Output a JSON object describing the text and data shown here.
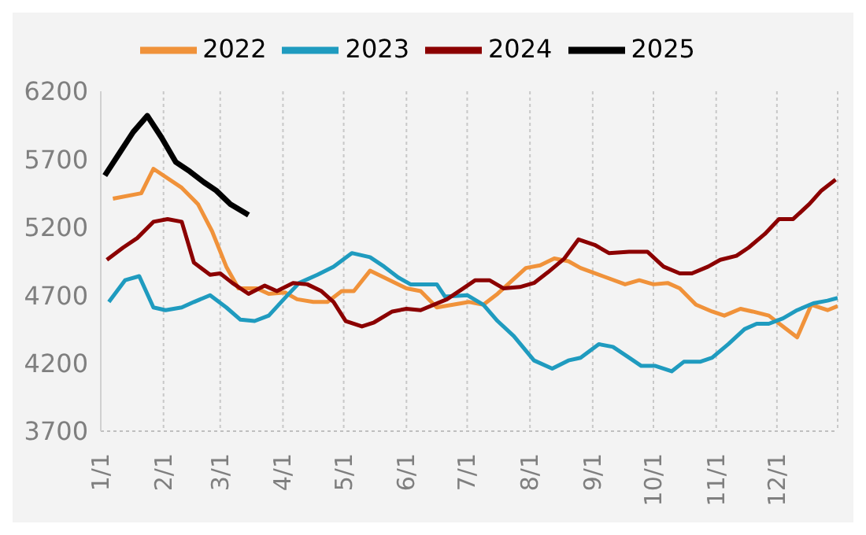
{
  "chart_data": {
    "type": "line",
    "xlim": [
      "--01-01",
      "--12-31"
    ],
    "xticks": [
      {
        "value": "--01-01",
        "label": "1/1"
      },
      {
        "value": "--02-01",
        "label": "2/1"
      },
      {
        "value": "--03-01",
        "label": "3/1"
      },
      {
        "value": "--04-01",
        "label": "4/1"
      },
      {
        "value": "--05-01",
        "label": "5/1"
      },
      {
        "value": "--06-01",
        "label": "6/1"
      },
      {
        "value": "--07-01",
        "label": "7/1"
      },
      {
        "value": "--08-01",
        "label": "8/1"
      },
      {
        "value": "--09-01",
        "label": "9/1"
      },
      {
        "value": "--10-01",
        "label": "10/1"
      },
      {
        "value": "--11-01",
        "label": "11/1"
      },
      {
        "value": "--12-01",
        "label": "12/1"
      }
    ],
    "ylim": [
      3700,
      6200
    ],
    "yticks": [
      3700,
      4200,
      4700,
      5200,
      5700,
      6200
    ],
    "grid": "x",
    "legend": "top",
    "line_style": "solid",
    "marker": "none",
    "series": [
      {
        "name": "2022",
        "color": "#f0923a",
        "x": [
          "--01-07",
          "--01-21",
          "--01-27",
          "--02-10",
          "--02-18",
          "--02-25",
          "--03-04",
          "--03-10",
          "--03-19",
          "--03-25",
          "--04-02",
          "--04-08",
          "--04-16",
          "--04-23",
          "--04-30",
          "--05-06",
          "--05-14",
          "--05-21",
          "--06-01",
          "--06-08",
          "--06-16",
          "--07-02",
          "--07-09",
          "--07-16",
          "--07-30",
          "--08-06",
          "--08-13",
          "--08-20",
          "--08-26",
          "--09-06",
          "--09-17",
          "--09-24",
          "--10-01",
          "--10-08",
          "--10-14",
          "--10-22",
          "--10-30",
          "--11-05",
          "--11-13",
          "--11-19",
          "--11-27",
          "--12-04",
          "--12-11",
          "--12-18",
          "--12-26",
          "--12-31"
        ],
        "values": [
          5410,
          5450,
          5630,
          5490,
          5370,
          5170,
          4910,
          4750,
          4750,
          4710,
          4720,
          4670,
          4650,
          4650,
          4730,
          4730,
          4880,
          4830,
          4750,
          4730,
          4610,
          4650,
          4630,
          4710,
          4900,
          4920,
          4970,
          4950,
          4900,
          4840,
          4780,
          4810,
          4780,
          4790,
          4750,
          4630,
          4580,
          4550,
          4600,
          4580,
          4550,
          4470,
          4390,
          4630,
          4590,
          4620
        ]
      },
      {
        "name": "2023",
        "color": "#1f9bbf",
        "x": [
          "--01-05",
          "--01-13",
          "--01-20",
          "--01-27",
          "--02-02",
          "--02-10",
          "--02-16",
          "--02-24",
          "--03-04",
          "--03-11",
          "--03-18",
          "--03-25",
          "--04-02",
          "--04-09",
          "--04-18",
          "--04-26",
          "--05-05",
          "--05-14",
          "--05-21",
          "--05-28",
          "--06-03",
          "--06-16",
          "--06-20",
          "--07-01",
          "--07-09",
          "--07-16",
          "--07-24",
          "--08-03",
          "--08-12",
          "--08-20",
          "--08-26",
          "--09-04",
          "--09-11",
          "--09-19",
          "--09-25",
          "--10-02",
          "--10-10",
          "--10-16",
          "--10-24",
          "--10-30",
          "--11-07",
          "--11-15",
          "--11-21",
          "--11-27",
          "--12-04",
          "--12-11",
          "--12-19",
          "--12-26",
          "--12-31"
        ],
        "values": [
          4650,
          4810,
          4840,
          4610,
          4590,
          4610,
          4650,
          4700,
          4610,
          4520,
          4510,
          4550,
          4680,
          4790,
          4850,
          4910,
          5010,
          4980,
          4910,
          4830,
          4780,
          4780,
          4690,
          4700,
          4630,
          4510,
          4400,
          4220,
          4160,
          4220,
          4240,
          4340,
          4320,
          4240,
          4180,
          4180,
          4140,
          4210,
          4210,
          4240,
          4340,
          4450,
          4490,
          4490,
          4530,
          4590,
          4640,
          4660,
          4680
        ]
      },
      {
        "name": "2024",
        "color": "#8b0000",
        "x": [
          "--01-04",
          "--01-12",
          "--01-19",
          "--01-27",
          "--02-03",
          "--02-10",
          "--02-16",
          "--02-24",
          "--03-01",
          "--03-07",
          "--03-15",
          "--03-23",
          "--03-29",
          "--04-06",
          "--04-13",
          "--04-20",
          "--04-26",
          "--05-02",
          "--05-10",
          "--05-16",
          "--05-25",
          "--06-01",
          "--06-08",
          "--06-21",
          "--06-29",
          "--07-05",
          "--07-12",
          "--07-19",
          "--07-27",
          "--08-03",
          "--08-10",
          "--08-18",
          "--08-25",
          "--09-02",
          "--09-09",
          "--09-19",
          "--09-28",
          "--10-06",
          "--10-14",
          "--10-20",
          "--10-28",
          "--11-03",
          "--11-11",
          "--11-17",
          "--11-25",
          "--12-02",
          "--12-09",
          "--12-17",
          "--12-23",
          "--12-30"
        ],
        "values": [
          4960,
          5050,
          5120,
          5240,
          5260,
          5240,
          4940,
          4850,
          4860,
          4790,
          4710,
          4770,
          4730,
          4790,
          4780,
          4730,
          4650,
          4510,
          4470,
          4500,
          4580,
          4600,
          4590,
          4670,
          4750,
          4810,
          4810,
          4750,
          4760,
          4790,
          4870,
          4970,
          5110,
          5070,
          5010,
          5020,
          5020,
          4910,
          4860,
          4860,
          4910,
          4960,
          4990,
          5050,
          5150,
          5260,
          5260,
          5370,
          5470,
          5550
        ]
      },
      {
        "name": "2025",
        "color": "#000000",
        "x": [
          "--01-03",
          "--01-10",
          "--01-17",
          "--01-24",
          "--01-31",
          "--02-07",
          "--02-14",
          "--02-21",
          "--02-27",
          "--03-06",
          "--03-15"
        ],
        "values": [
          5580,
          5740,
          5900,
          6020,
          5860,
          5680,
          5610,
          5530,
          5470,
          5370,
          5290
        ]
      }
    ]
  }
}
